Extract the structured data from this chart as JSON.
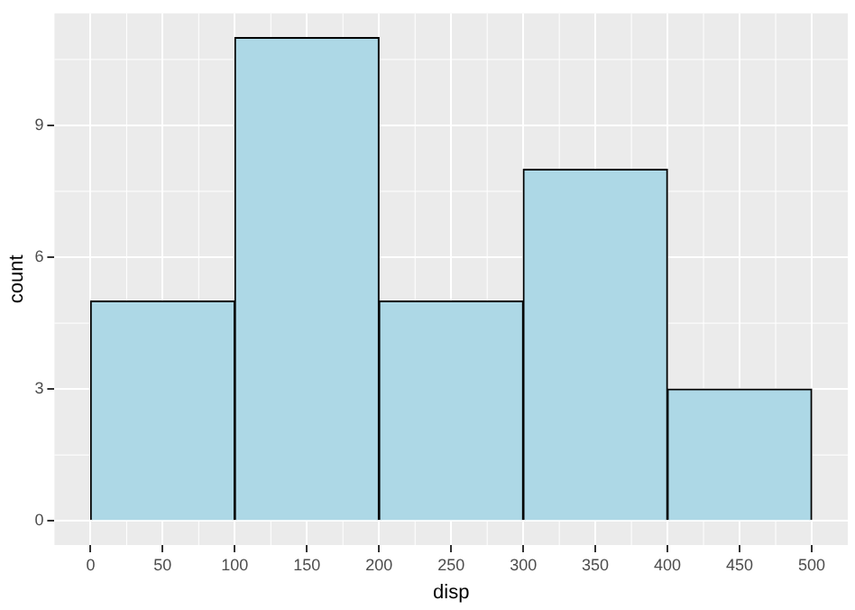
{
  "chart_data": {
    "type": "histogram",
    "xlabel": "disp",
    "ylabel": "count",
    "bins": [
      0,
      100,
      200,
      300,
      400,
      500
    ],
    "values": [
      5,
      11,
      5,
      8,
      3
    ],
    "color": "#add8e6",
    "xlim": [
      -25,
      525
    ],
    "xticks": [
      0,
      50,
      100,
      150,
      200,
      250,
      300,
      350,
      400,
      450,
      500
    ],
    "ylim": [
      -0.55,
      11.55
    ],
    "yticks": [
      0,
      3,
      6,
      9
    ],
    "grid": true,
    "legend": false
  }
}
